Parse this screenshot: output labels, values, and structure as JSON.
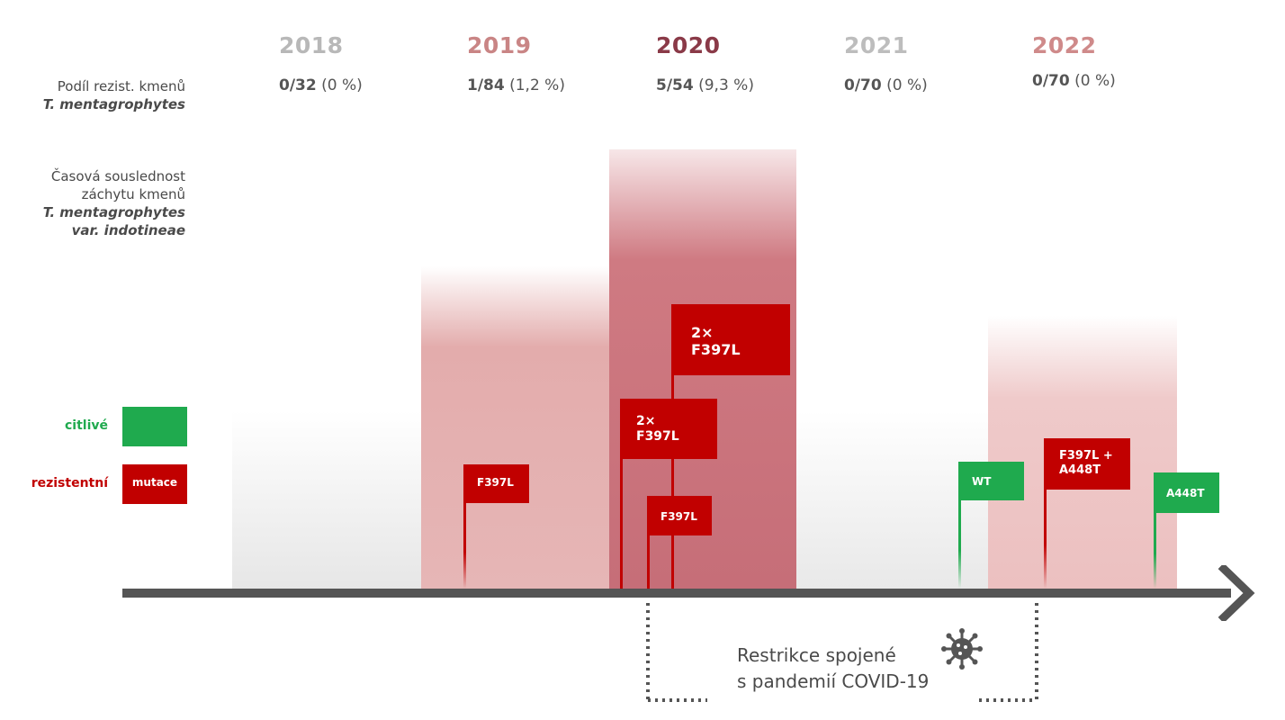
{
  "years": [
    "2018",
    "2019",
    "2020",
    "2021",
    "2022"
  ],
  "year_colors": {
    "2018": "#b8b8b8",
    "2019": "#c98585",
    "2020": "#8a3a48",
    "2021": "#bdbdbd",
    "2022": "#cf8a8a"
  },
  "ratios": [
    {
      "bold": "0/32",
      "rest": "(0 %)"
    },
    {
      "bold": "1/84",
      "rest": "(1,2 %)"
    },
    {
      "bold": "5/54",
      "rest": "(9,3 %)"
    },
    {
      "bold": "0/70",
      "rest": "(0 %)"
    },
    {
      "bold": "0/70",
      "rest": "(0 %)"
    }
  ],
  "labels": {
    "row1_line1": "Podíl rezist. kmenů",
    "row1_line2": "T. mentagrophytes",
    "row2_line1": "Časová souslednost",
    "row2_line2": "záchytu kmenů",
    "row2_line3": "T. mentagrophytes",
    "row2_line4": "var. indotineae"
  },
  "legend": {
    "sensitive_label": "citlivé",
    "resistant_label": "rezistentní",
    "resistant_box": "mutace"
  },
  "flags": {
    "f2019": "F397L",
    "f2020a_1": "2×",
    "f2020a_2": "F397L",
    "f2020b_1": "2×",
    "f2020b_2": "F397L",
    "f2020c": "F397L",
    "f2022wt": "WT",
    "f2022mut_1": "F397L +",
    "f2022mut_2": "A448T",
    "f2022a448": "A448T"
  },
  "note": {
    "line1": "Restrikce spojené",
    "line2": "s pandemií COVID-19"
  },
  "colors": {
    "resistant": "#c10000",
    "sensitive": "#1faa4e",
    "axis": "#555555"
  }
}
